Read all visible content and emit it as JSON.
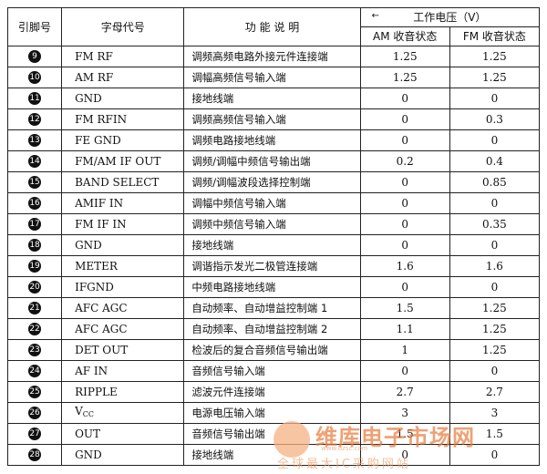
{
  "header": {
    "pin": "引脚号",
    "code": "字母代号",
    "function": "功 能 说 明",
    "voltage_mark": "←",
    "voltage": "工作电压（V）",
    "am": "AM 收音状态",
    "fm": "FM 收音状态"
  },
  "rows": [
    {
      "pin": "9",
      "code": "FM RF",
      "func": "调频高频电路外接元件连接端",
      "am": "1.25",
      "fm": "1.25"
    },
    {
      "pin": "10",
      "code": "AM RF",
      "func": "调幅高频信号输入端",
      "am": "1.25",
      "fm": "1.25"
    },
    {
      "pin": "11",
      "code": "GND",
      "func": "接地线端",
      "am": "0",
      "fm": "0"
    },
    {
      "pin": "12",
      "code": "FM RFIN",
      "func": "调频高频信号输入端",
      "am": "0",
      "fm": "0.3"
    },
    {
      "pin": "13",
      "code": "FE GND",
      "func": "调频电路接地线端",
      "am": "0",
      "fm": "0"
    },
    {
      "pin": "14",
      "code": "FM/AM IF OUT",
      "func": "调频/调幅中频信号输出端",
      "am": "0.2",
      "fm": "0.4"
    },
    {
      "pin": "15",
      "code": "BAND SELECT",
      "func": "调频/调幅波段选择控制端",
      "am": "0",
      "fm": "0.85"
    },
    {
      "pin": "16",
      "code": "AMIF IN",
      "func": "调幅中频信号输入端",
      "am": "0",
      "fm": "0"
    },
    {
      "pin": "17",
      "code": "FM IF IN",
      "func": "调频中频信号输入端",
      "am": "0",
      "fm": "0.35"
    },
    {
      "pin": "18",
      "code": "GND",
      "func": "接地线端",
      "am": "0",
      "fm": "0"
    },
    {
      "pin": "19",
      "code": "METER",
      "func": "调谐指示发光二极管连接端",
      "am": "1.6",
      "fm": "1.6"
    },
    {
      "pin": "20",
      "code": "IFGND",
      "func": "中频电路接地线端",
      "am": "0",
      "fm": "0"
    },
    {
      "pin": "21",
      "code": "AFC AGC",
      "func": "自动频率、自动增益控制端 1",
      "am": "1.5",
      "fm": "1.25"
    },
    {
      "pin": "22",
      "code": "AFC AGC",
      "func": "自动频率、自动增益控制端 2",
      "am": "1.1",
      "fm": "1.25"
    },
    {
      "pin": "23",
      "code": "DET OUT",
      "func": "检波后的复合音频信号输出端",
      "am": "1",
      "fm": "1.25"
    },
    {
      "pin": "24",
      "code": "AF IN",
      "func": "音频信号输入端",
      "am": "0",
      "fm": "0"
    },
    {
      "pin": "25",
      "code": "RIPPLE",
      "func": "滤波元件连接端",
      "am": "2.7",
      "fm": "2.7"
    },
    {
      "pin": "26",
      "code": "V",
      "code_sub": "CC",
      "func": "电源电压输入端",
      "am": "3",
      "fm": "3"
    },
    {
      "pin": "27",
      "code": "OUT",
      "func": "音频信号输出端",
      "am": "1.5",
      "fm": "1.5"
    },
    {
      "pin": "28",
      "code": "GND",
      "func": "接地线端",
      "am": "0",
      "fm": "0"
    }
  ],
  "watermark": {
    "title": "维库电子市场网",
    "url": "www.dzsc.com",
    "subtitle": "全球最大IC采购网站"
  }
}
